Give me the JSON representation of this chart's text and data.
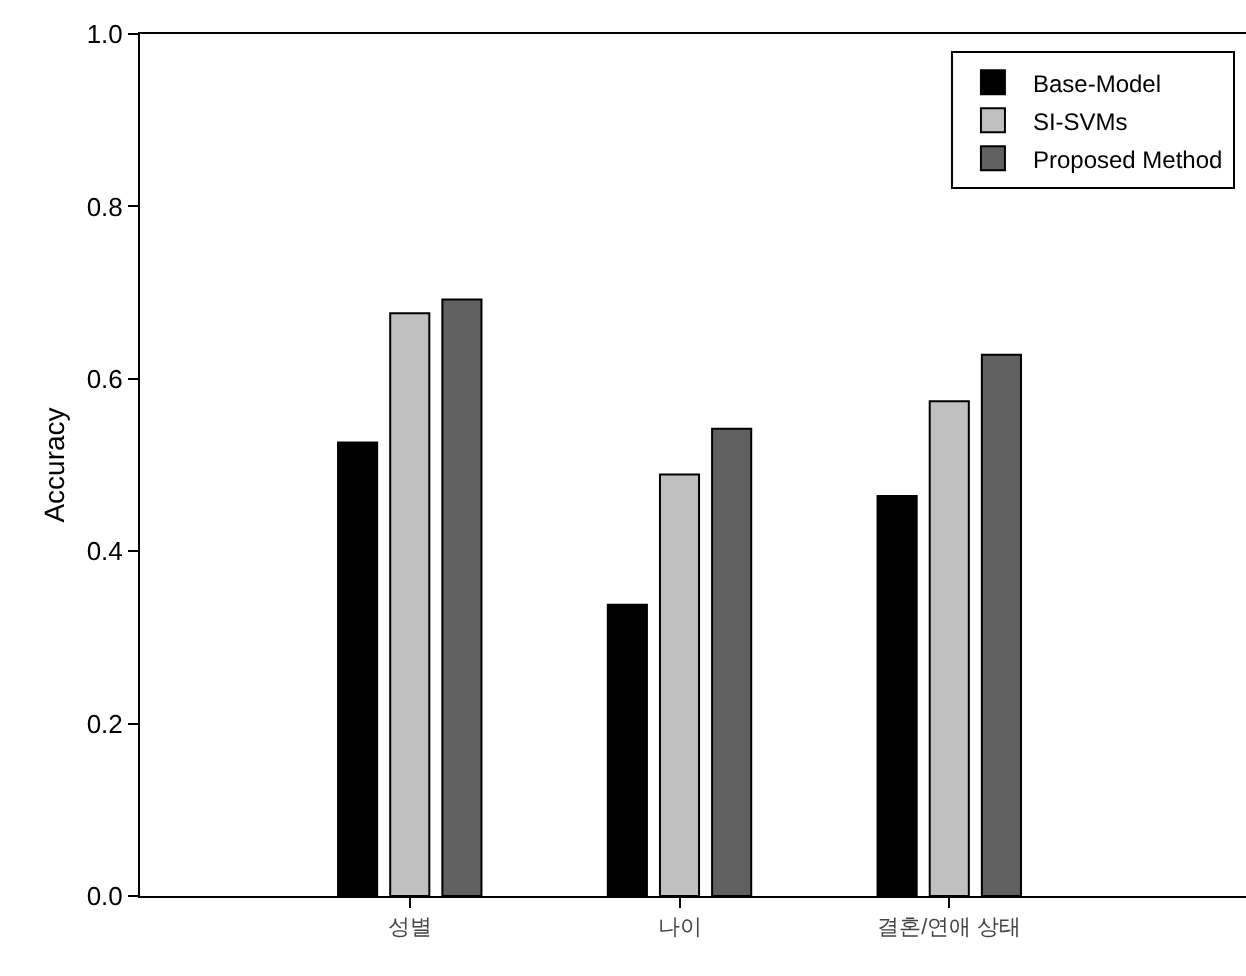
{
  "chart_data": {
    "type": "bar",
    "ylabel": "Accuracy",
    "categories": [
      "성별",
      "나이",
      "결혼/연애 상태"
    ],
    "series": [
      {
        "name": "Base-Model",
        "color": "#000000",
        "values": [
          0.526,
          0.338,
          0.464
        ]
      },
      {
        "name": "SI-SVMs",
        "color": "#c0c0c0",
        "values": [
          0.676,
          0.489,
          0.574
        ]
      },
      {
        "name": "Proposed Method",
        "color": "#606060",
        "values": [
          0.692,
          0.542,
          0.628
        ]
      }
    ],
    "ylim": [
      0,
      1
    ],
    "yticks": [
      {
        "value": 0,
        "label": "0.0"
      },
      {
        "value": 0.2,
        "label": "0.2"
      },
      {
        "value": 0.4,
        "label": "0.4"
      },
      {
        "value": 0.6,
        "label": "0.6"
      },
      {
        "value": 0.8,
        "label": "0.8"
      },
      {
        "value": 1,
        "label": "1.0"
      }
    ],
    "grid": false,
    "legend": "top right"
  }
}
